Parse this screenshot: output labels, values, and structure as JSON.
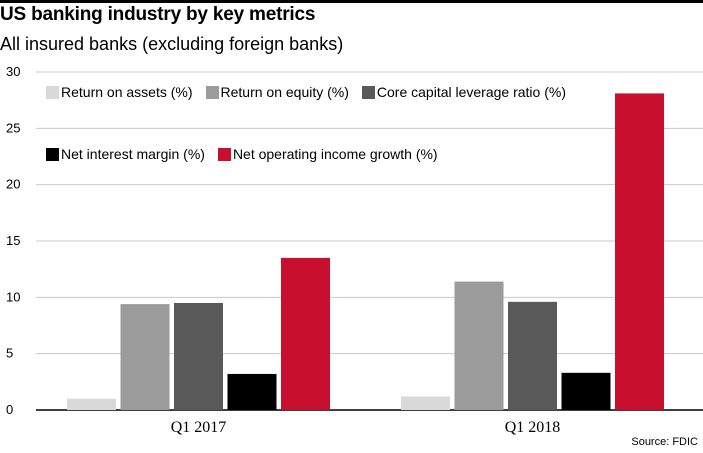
{
  "title": "US banking industry by key metrics",
  "subtitle": "All insured banks (excluding foreign banks)",
  "source": "Source: FDIC",
  "chart_data": {
    "type": "bar",
    "title": "US banking industry by key metrics",
    "subtitle": "All insured banks (excluding foreign banks)",
    "categories": [
      "Q1 2017",
      "Q1 2018"
    ],
    "series": [
      {
        "name": "Return on assets (%)",
        "values": [
          1.0,
          1.2
        ],
        "color": "#d9d9d9"
      },
      {
        "name": "Return on equity (%)",
        "values": [
          9.4,
          11.4
        ],
        "color": "#9b9b9b"
      },
      {
        "name": "Core capital leverage ratio (%)",
        "values": [
          9.5,
          9.6
        ],
        "color": "#595959"
      },
      {
        "name": "Net interest margin (%)",
        "values": [
          3.2,
          3.3
        ],
        "color": "#000000"
      },
      {
        "name": "Net operating income growth (%)",
        "values": [
          13.5,
          28.1
        ],
        "color": "#c8102e"
      }
    ],
    "yticks": [
      "0",
      "5",
      "10",
      "15",
      "20",
      "25",
      "30"
    ],
    "ylim": [
      0,
      30
    ],
    "grid": true,
    "legend_position": "top-left",
    "xlabel": "",
    "ylabel": ""
  }
}
